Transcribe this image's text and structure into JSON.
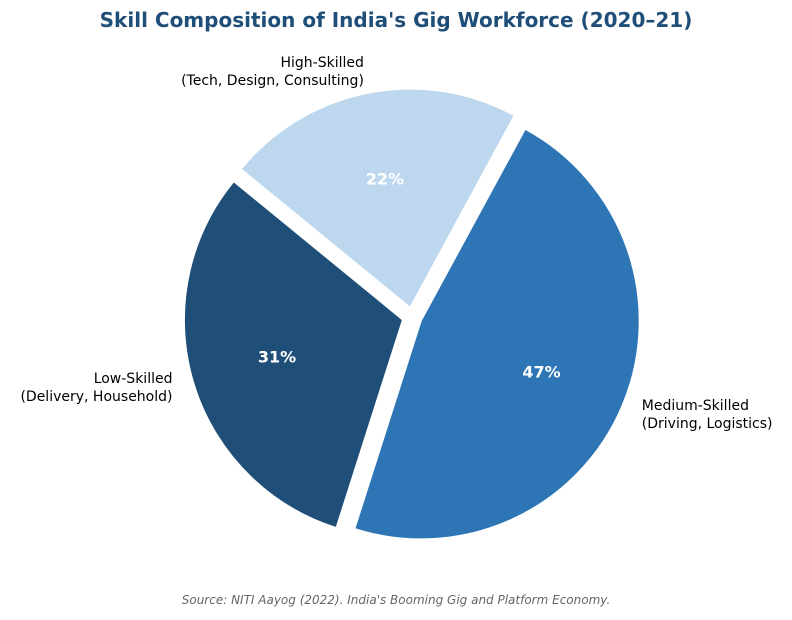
{
  "chart_data": {
    "type": "pie",
    "title": "Skill Composition of India's Gig Workforce (2020–21)",
    "slices": [
      {
        "label": [
          "Medium-Skilled",
          "(Driving, Logistics)"
        ],
        "value": 47,
        "value_label": "47%",
        "color": "#2e75b6"
      },
      {
        "label": [
          "Low-Skilled",
          "(Delivery, Household)"
        ],
        "value": 31,
        "value_label": "31%",
        "color": "#1f4e79"
      },
      {
        "label": [
          "High-Skilled",
          "(Tech, Design, Consulting)"
        ],
        "value": 22,
        "value_label": "22%",
        "color": "#bdd7ee"
      }
    ],
    "exploded": true,
    "source": "Source: NITI Aayog (2022). India's Booming Gig and Platform Economy."
  }
}
